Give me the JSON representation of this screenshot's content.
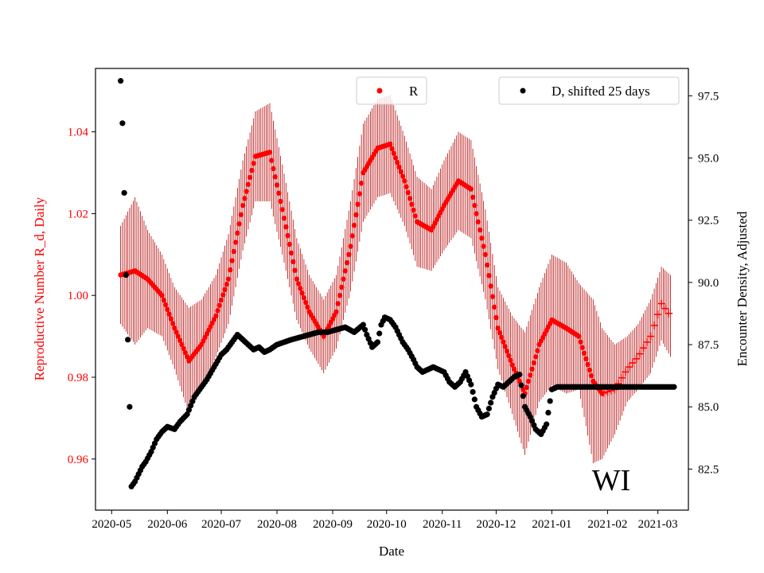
{
  "chart_data": {
    "type": "scatter",
    "state_label": "WI",
    "xlabel": "Date",
    "ylabel_left": "Reproductive Number R_d, Daily",
    "ylabel_right": "Encounter Density, Adjusted",
    "x_ticks": [
      "2020-05",
      "2020-06",
      "2020-07",
      "2020-08",
      "2020-09",
      "2020-10",
      "2020-11",
      "2020-12",
      "2021-01",
      "2021-02",
      "2021-03"
    ],
    "x_tick_day_offsets": [
      0,
      31,
      61,
      92,
      123,
      153,
      184,
      214,
      245,
      276,
      304
    ],
    "x_range_days": [
      -9,
      321
    ],
    "ylim_left": [
      0.9475,
      1.0555
    ],
    "yticks_left": [
      0.96,
      0.98,
      1.0,
      1.02,
      1.04
    ],
    "ytick_labels_left": [
      "0.96",
      "0.98",
      "1.00",
      "1.02",
      "1.04"
    ],
    "ylim_right": [
      80.85,
      98.6
    ],
    "yticks_right": [
      82.5,
      85.0,
      87.5,
      90.0,
      92.5,
      95.0,
      97.5
    ],
    "ytick_labels_right": [
      "82.5",
      "85.0",
      "87.5",
      "90.0",
      "92.5",
      "95.0",
      "97.5"
    ],
    "legend_left": {
      "label": "R",
      "placement": "top-center"
    },
    "legend_right": {
      "label": "D, shifted 25 days",
      "placement": "top-right"
    },
    "colors": {
      "r_series": "#ff0000",
      "r_errorbar": "#b20000",
      "d_series": "#000000",
      "axis": "#000000",
      "left_axis_text": "#ff0000"
    },
    "series_R": {
      "name": "R",
      "marker_dots_until_day": 273,
      "day": [
        5,
        13,
        20,
        28,
        35,
        43,
        50,
        58,
        65,
        73,
        80,
        88,
        95,
        103,
        110,
        118,
        125,
        133,
        140,
        148,
        155,
        163,
        170,
        178,
        185,
        193,
        200,
        208,
        215,
        223,
        230,
        238,
        245,
        253,
        260,
        268,
        273,
        280,
        287,
        293,
        300,
        306,
        311
      ],
      "value": [
        1.005,
        1.006,
        1.004,
        1.0,
        0.992,
        0.984,
        0.988,
        0.995,
        1.004,
        1.022,
        1.034,
        1.035,
        1.021,
        1.004,
        0.996,
        0.99,
        0.996,
        1.012,
        1.03,
        1.036,
        1.037,
        1.028,
        1.018,
        1.016,
        1.022,
        1.028,
        1.026,
        1.01,
        0.992,
        0.983,
        0.976,
        0.988,
        0.994,
        0.992,
        0.99,
        0.979,
        0.976,
        0.977,
        0.982,
        0.985,
        0.99,
        0.998,
        0.995
      ],
      "err": [
        0.012,
        0.018,
        0.012,
        0.01,
        0.01,
        0.013,
        0.011,
        0.01,
        0.011,
        0.011,
        0.011,
        0.012,
        0.011,
        0.01,
        0.009,
        0.009,
        0.009,
        0.011,
        0.012,
        0.012,
        0.012,
        0.011,
        0.011,
        0.01,
        0.011,
        0.012,
        0.012,
        0.011,
        0.01,
        0.012,
        0.015,
        0.014,
        0.016,
        0.016,
        0.013,
        0.02,
        0.016,
        0.011,
        0.008,
        0.008,
        0.009,
        0.009,
        0.01
      ]
    },
    "series_D": {
      "name": "D, shifted 25 days",
      "shift_days": 25,
      "day": [
        5,
        6,
        7,
        8,
        9,
        10,
        11,
        13,
        15,
        17,
        19,
        22,
        25,
        28,
        31,
        35,
        38,
        42,
        46,
        50,
        53,
        57,
        61,
        64,
        67,
        70,
        73,
        76,
        79,
        82,
        85,
        88,
        92,
        96,
        100,
        105,
        110,
        115,
        120,
        125,
        130,
        135,
        140,
        142,
        145,
        148,
        150,
        152,
        155,
        158,
        160,
        162,
        165,
        168,
        170,
        173,
        176,
        179,
        182,
        185,
        188,
        191,
        194,
        197,
        200,
        203,
        206,
        209,
        212,
        215,
        218,
        221,
        224,
        227,
        230,
        233,
        236,
        239,
        242,
        245,
        248,
        251,
        254,
        257,
        260,
        263,
        266,
        268,
        270,
        272,
        274,
        276,
        278,
        280,
        283,
        286,
        289,
        292,
        295,
        298,
        301,
        304,
        307,
        310,
        313
      ],
      "value": [
        98.1,
        96.4,
        93.6,
        90.3,
        87.7,
        85.0,
        81.8,
        82.0,
        82.3,
        82.6,
        82.8,
        83.2,
        83.7,
        84.0,
        84.2,
        84.1,
        84.4,
        84.7,
        85.4,
        85.8,
        86.1,
        86.6,
        87.1,
        87.3,
        87.6,
        87.9,
        87.7,
        87.5,
        87.3,
        87.4,
        87.2,
        87.3,
        87.5,
        87.6,
        87.7,
        87.8,
        87.9,
        88.0,
        88.0,
        88.1,
        88.2,
        88.0,
        88.3,
        87.9,
        87.4,
        87.6,
        88.3,
        88.6,
        88.5,
        88.2,
        87.9,
        87.6,
        87.3,
        86.9,
        86.6,
        86.4,
        86.5,
        86.6,
        86.5,
        86.4,
        86.0,
        85.8,
        86.0,
        86.4,
        85.9,
        85.0,
        84.6,
        84.7,
        85.4,
        85.9,
        85.8,
        86.0,
        86.2,
        86.3,
        85.0,
        84.6,
        84.1,
        83.9,
        84.3,
        85.7,
        85.8,
        85.8,
        85.8,
        85.8,
        85.8,
        85.8,
        85.8,
        85.8,
        85.8,
        85.8,
        85.8,
        85.8,
        85.8,
        85.8,
        85.8,
        85.8,
        85.8,
        85.8,
        85.8,
        85.8,
        85.8,
        85.8,
        85.8,
        85.8,
        85.8
      ]
    }
  }
}
